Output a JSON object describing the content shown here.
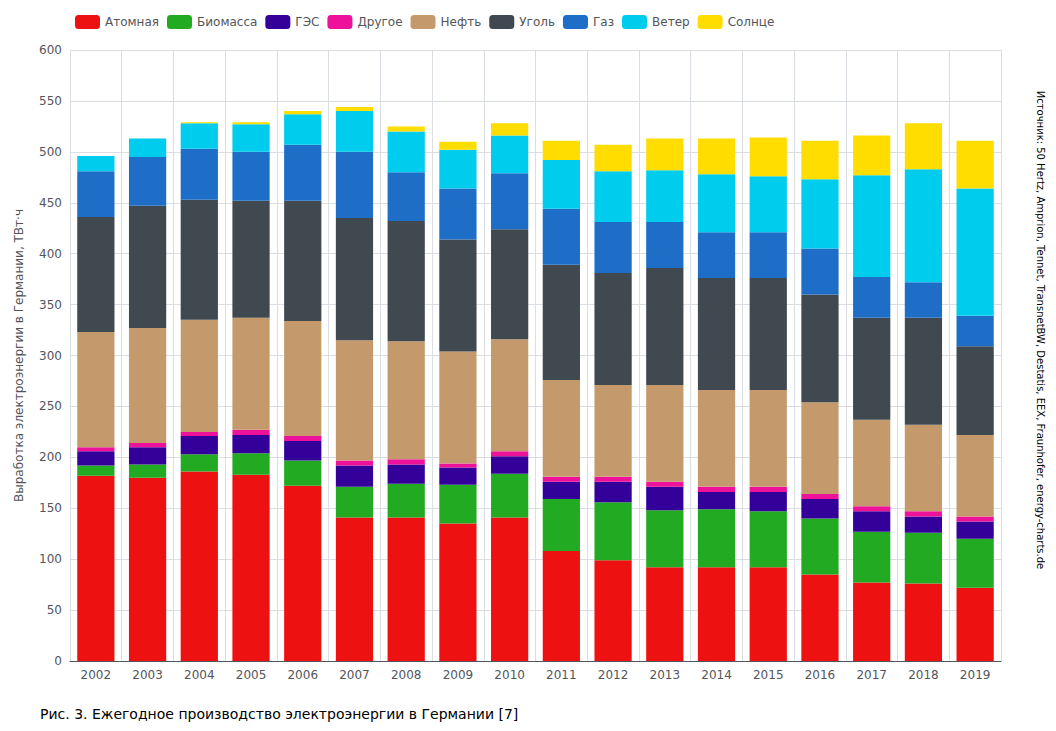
{
  "chart_data": {
    "type": "bar",
    "stacked": true,
    "ylabel": "Выработка электроэнергии в Германии, ТВт·ч",
    "categories": [
      "2002",
      "2003",
      "2004",
      "2005",
      "2006",
      "2007",
      "2008",
      "2009",
      "2010",
      "2011",
      "2012",
      "2013",
      "2014",
      "2015",
      "2016",
      "2017",
      "2018",
      "2019"
    ],
    "series": [
      {
        "name": "Атомная",
        "color": "#EE1111",
        "values": [
          182,
          180,
          186,
          183,
          172,
          141,
          141,
          135,
          141,
          108,
          99,
          92,
          92,
          92,
          85,
          77,
          76,
          72
        ]
      },
      {
        "name": "Биомасса",
        "color": "#22AA22",
        "values": [
          10,
          13,
          17,
          21,
          25,
          30,
          33,
          38,
          43,
          51,
          57,
          56,
          57,
          55,
          55,
          50,
          50,
          48
        ]
      },
      {
        "name": "ГЭС",
        "color": "#330099",
        "values": [
          14,
          17,
          18,
          18,
          19,
          21,
          19,
          17,
          17,
          17,
          20,
          23,
          17,
          19,
          19,
          20,
          16,
          17
        ]
      },
      {
        "name": "Другое",
        "color": "#EE1199",
        "values": [
          4,
          4,
          4,
          5,
          5,
          5,
          5,
          4,
          5,
          5,
          5,
          5,
          5,
          5,
          5,
          5,
          5,
          5
        ]
      },
      {
        "name": "Нефть",
        "color": "#C49A6C",
        "values": [
          113,
          113,
          110,
          110,
          113,
          118,
          116,
          110,
          110,
          95,
          90,
          95,
          95,
          95,
          90,
          85,
          85,
          80
        ]
      },
      {
        "name": "Уголь",
        "color": "#404850",
        "values": [
          113,
          120,
          118,
          115,
          118,
          120,
          118,
          110,
          108,
          113,
          110,
          115,
          110,
          110,
          106,
          100,
          105,
          87
        ]
      },
      {
        "name": "Газ",
        "color": "#1E6EC8",
        "values": [
          45,
          48,
          50,
          48,
          55,
          65,
          48,
          50,
          55,
          55,
          50,
          45,
          45,
          45,
          45,
          40,
          35,
          30
        ]
      },
      {
        "name": "Ветер",
        "color": "#00CCEE",
        "values": [
          15,
          18,
          25,
          27,
          30,
          40,
          40,
          38,
          37,
          48,
          50,
          51,
          57,
          55,
          68,
          100,
          111,
          125
        ]
      },
      {
        "name": "Солнце",
        "color": "#FFDD00",
        "values": [
          0,
          0,
          1,
          2,
          3,
          4,
          5,
          8,
          12,
          19,
          26,
          31,
          35,
          38,
          38,
          39,
          45,
          47
        ]
      }
    ],
    "ylim": [
      0,
      600
    ],
    "yticks": [
      0,
      50,
      100,
      150,
      200,
      250,
      300,
      350,
      400,
      450,
      500,
      550,
      600
    ],
    "grid": true,
    "legend": "upper left",
    "annotations": [
      "Рис. 3. Ежегодное производство электроэнергии в Германии [7]",
      "Источник: 50 Hertz, Amprion, Tennet, TransnetBW, Destatis, EEX, Fraunhofer, energy-charts.de"
    ]
  }
}
